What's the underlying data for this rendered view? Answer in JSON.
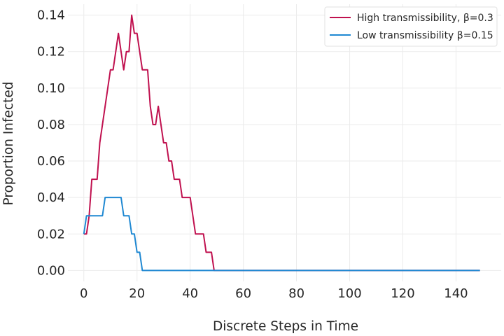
{
  "chart_data": {
    "type": "line",
    "xlabel": "Discrete Steps in Time",
    "ylabel": "Proportion Infected",
    "xlim": [
      -6,
      157
    ],
    "ylim": [
      -0.006,
      0.146
    ],
    "xticks": [
      0,
      20,
      40,
      60,
      80,
      100,
      120,
      140
    ],
    "yticks": [
      0.0,
      0.02,
      0.04,
      0.06,
      0.08,
      0.1,
      0.12,
      0.14
    ],
    "ytick_labels": [
      "0.00",
      "0.02",
      "0.04",
      "0.06",
      "0.08",
      "0.10",
      "0.12",
      "0.14"
    ],
    "grid": true,
    "legend_position": "top-right",
    "series": [
      {
        "name": "High transmissibility, β=0.3",
        "color": "#c0114f",
        "x": [
          0,
          1,
          2,
          3,
          4,
          5,
          6,
          7,
          8,
          9,
          10,
          11,
          12,
          13,
          14,
          15,
          16,
          17,
          18,
          19,
          20,
          21,
          22,
          23,
          24,
          25,
          26,
          27,
          28,
          29,
          30,
          31,
          32,
          33,
          34,
          35,
          36,
          37,
          38,
          39,
          40,
          41,
          42,
          43,
          44,
          45,
          46,
          47,
          48,
          49,
          50,
          60,
          80,
          100,
          120,
          149
        ],
        "values": [
          0.02,
          0.02,
          0.03,
          0.05,
          0.05,
          0.05,
          0.07,
          0.08,
          0.09,
          0.1,
          0.11,
          0.11,
          0.12,
          0.13,
          0.12,
          0.11,
          0.12,
          0.12,
          0.14,
          0.13,
          0.13,
          0.12,
          0.11,
          0.11,
          0.11,
          0.09,
          0.08,
          0.08,
          0.09,
          0.08,
          0.07,
          0.07,
          0.06,
          0.06,
          0.05,
          0.05,
          0.05,
          0.04,
          0.04,
          0.04,
          0.04,
          0.03,
          0.02,
          0.02,
          0.02,
          0.02,
          0.01,
          0.01,
          0.01,
          0.0,
          0.0,
          0.0,
          0.0,
          0.0,
          0.0,
          0.0
        ]
      },
      {
        "name": "Low transmissibility β=0.15",
        "color": "#1f88d2",
        "x": [
          0,
          1,
          2,
          3,
          4,
          5,
          6,
          7,
          8,
          9,
          10,
          11,
          12,
          13,
          14,
          15,
          16,
          17,
          18,
          19,
          20,
          21,
          22,
          23,
          40,
          60,
          80,
          100,
          120,
          149
        ],
        "values": [
          0.02,
          0.03,
          0.03,
          0.03,
          0.03,
          0.03,
          0.03,
          0.03,
          0.04,
          0.04,
          0.04,
          0.04,
          0.04,
          0.04,
          0.04,
          0.03,
          0.03,
          0.03,
          0.02,
          0.02,
          0.01,
          0.01,
          0.0,
          0.0,
          0.0,
          0.0,
          0.0,
          0.0,
          0.0,
          0.0
        ]
      }
    ]
  }
}
